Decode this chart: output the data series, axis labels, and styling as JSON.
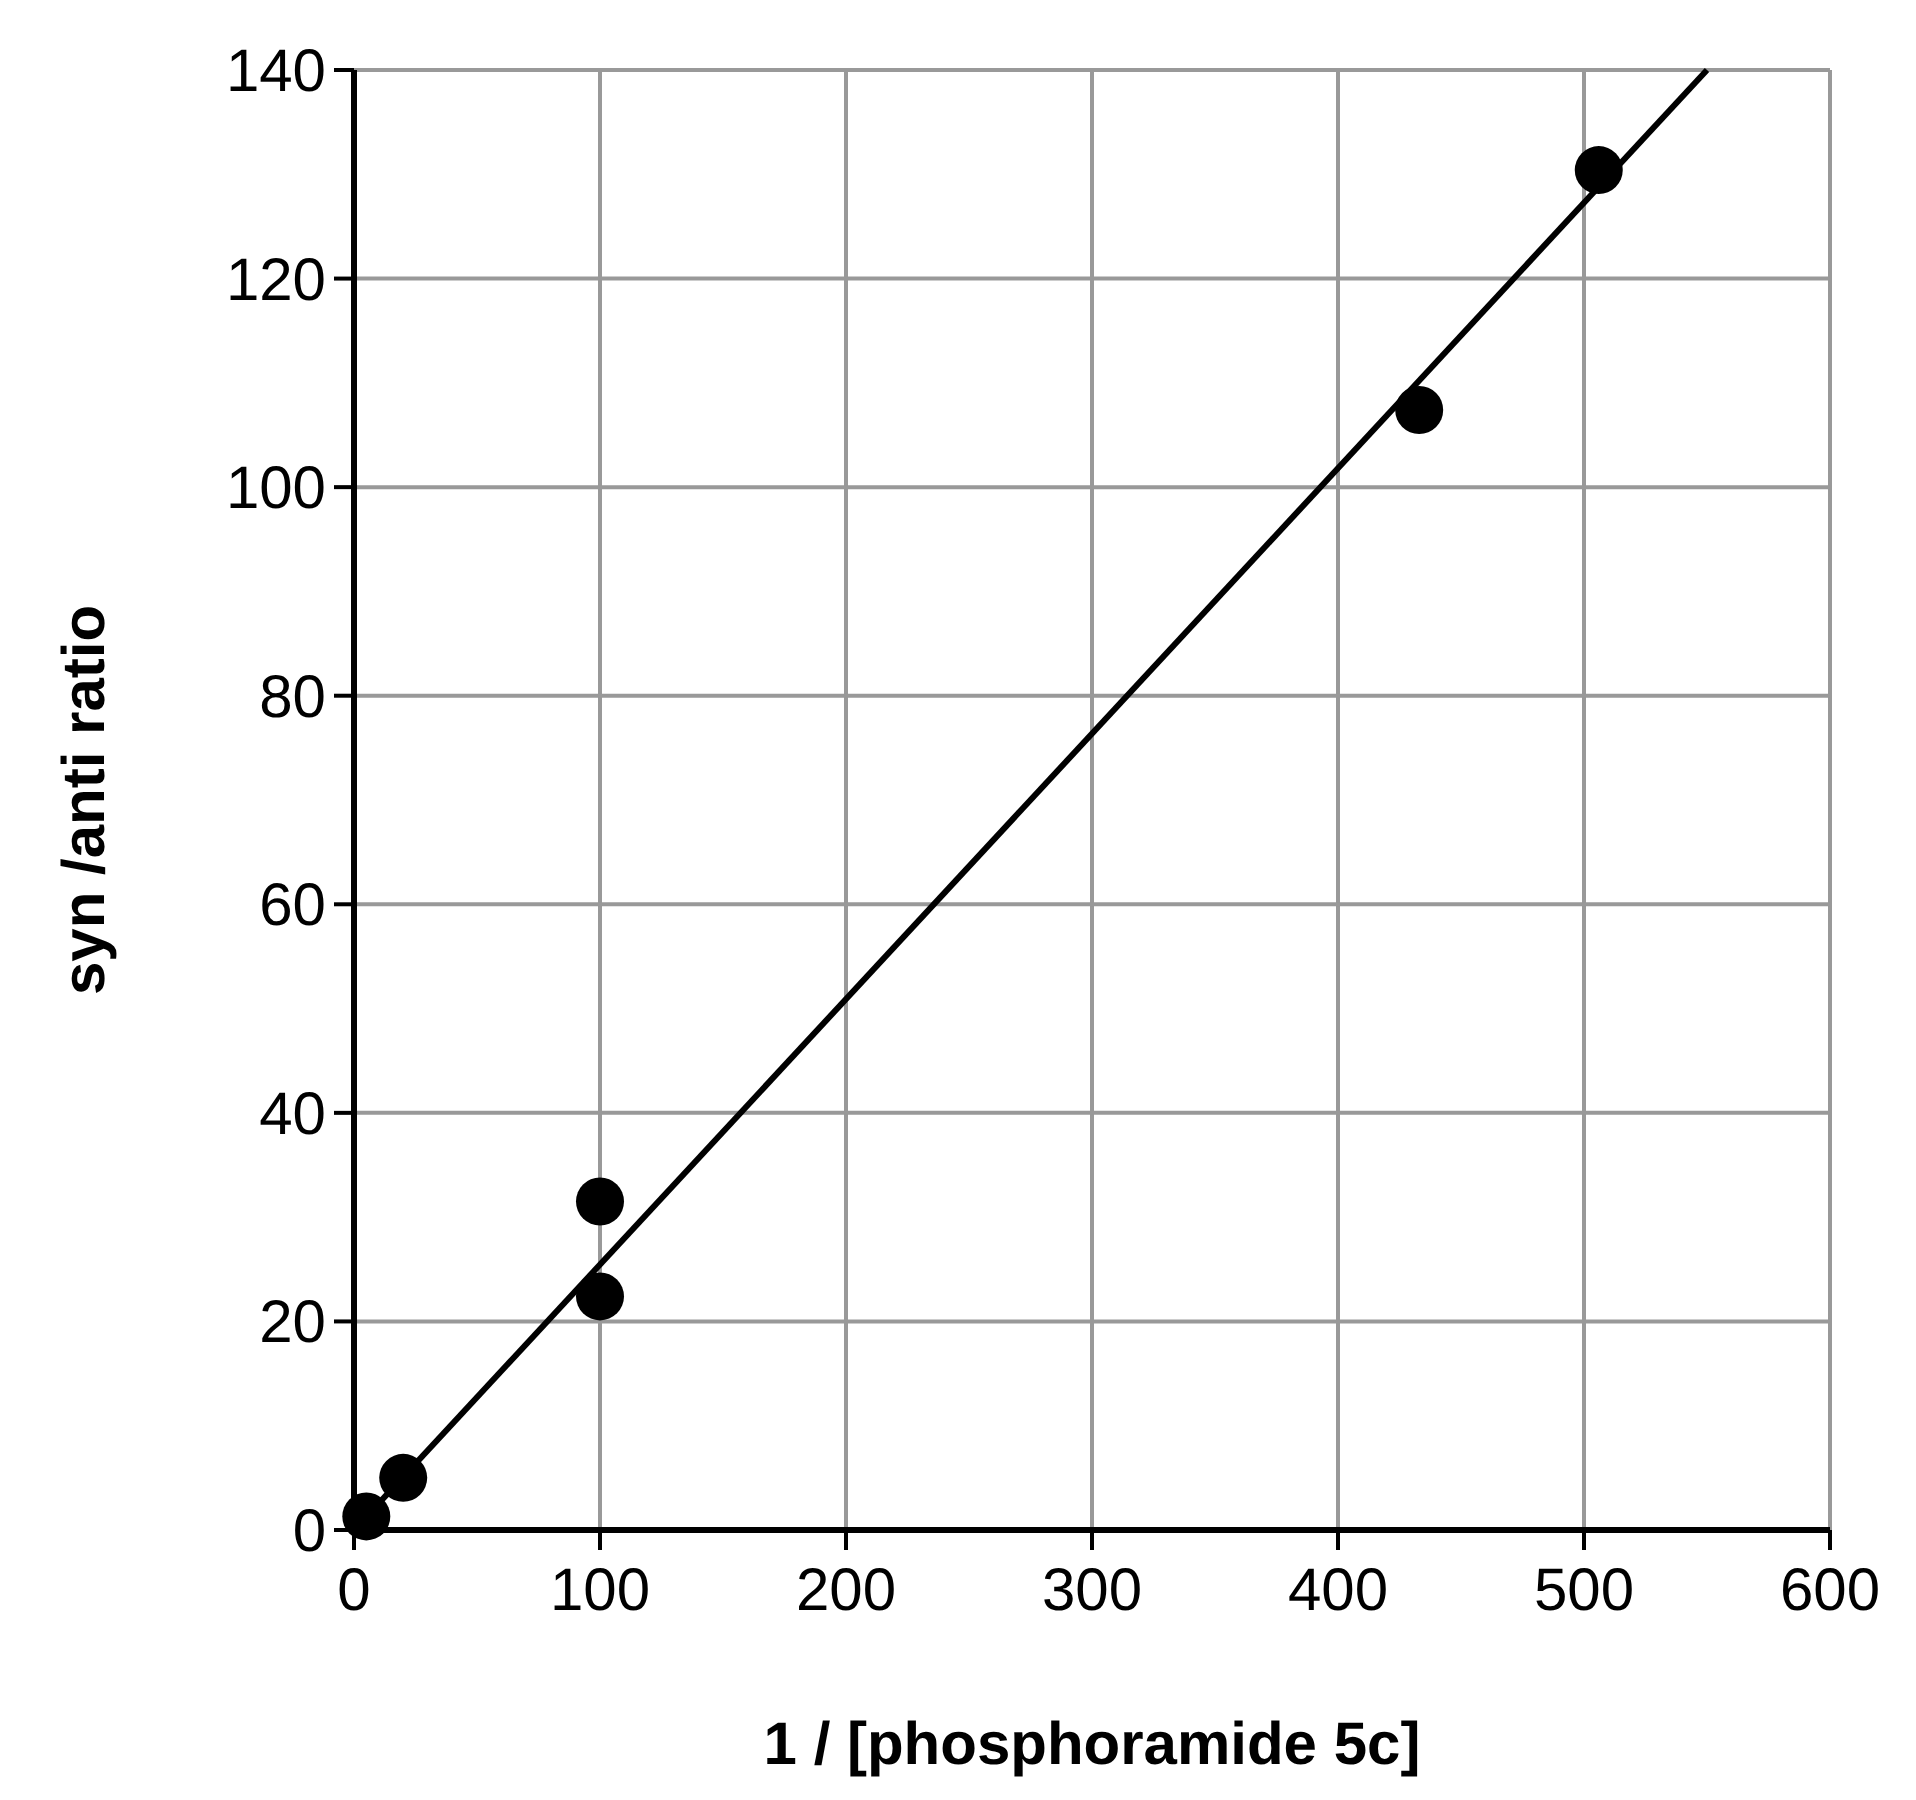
{
  "chart_data": {
    "type": "scatter",
    "xlabel": "1 / [phosphoramide 5c]",
    "ylabel": "syn /anti ratio",
    "xlim": [
      0,
      600
    ],
    "xticks": [
      0,
      100,
      200,
      300,
      400,
      500,
      600
    ],
    "ylim": [
      0,
      140
    ],
    "yticks": [
      0,
      20,
      40,
      60,
      80,
      100,
      120,
      140
    ],
    "grid": true,
    "marker": "circle",
    "series": [
      {
        "color": "#000000",
        "x": [
          5,
          20,
          100,
          100,
          433,
          506
        ],
        "values": [
          1.3,
          5,
          31.5,
          22.4,
          107.4,
          130.4
        ]
      },
      {
        "type": "line",
        "color": "#000000",
        "x": [
          0,
          550
        ],
        "values": [
          0,
          140
        ],
        "marker": "none"
      }
    ]
  }
}
